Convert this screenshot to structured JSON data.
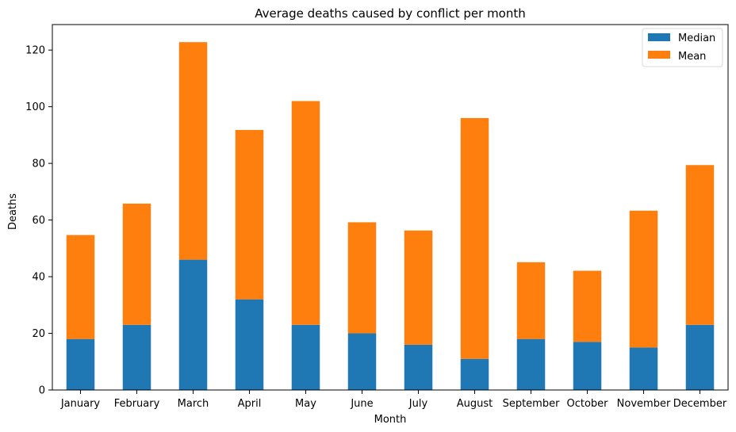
{
  "chart_data": {
    "type": "bar",
    "stacked": true,
    "title": "Average deaths caused by conflict per month",
    "xlabel": "Month",
    "ylabel": "Deaths",
    "ylim": [
      0,
      129
    ],
    "yticks": [
      0,
      20,
      40,
      60,
      80,
      100,
      120
    ],
    "categories": [
      "January",
      "February",
      "March",
      "April",
      "May",
      "June",
      "July",
      "August",
      "September",
      "October",
      "November",
      "December"
    ],
    "series": [
      {
        "name": "Median",
        "color": "#1f77b4",
        "values": [
          18,
          23,
          46,
          32,
          23,
          20,
          16,
          11,
          18,
          17,
          15,
          23
        ]
      },
      {
        "name": "Mean",
        "color": "#ff7f0e",
        "values": [
          36.7,
          42.8,
          76.8,
          59.8,
          79,
          39.2,
          40.3,
          85,
          27.1,
          25.1,
          48.3,
          56.4
        ]
      }
    ],
    "legend_position": "top-right",
    "grid": false
  }
}
